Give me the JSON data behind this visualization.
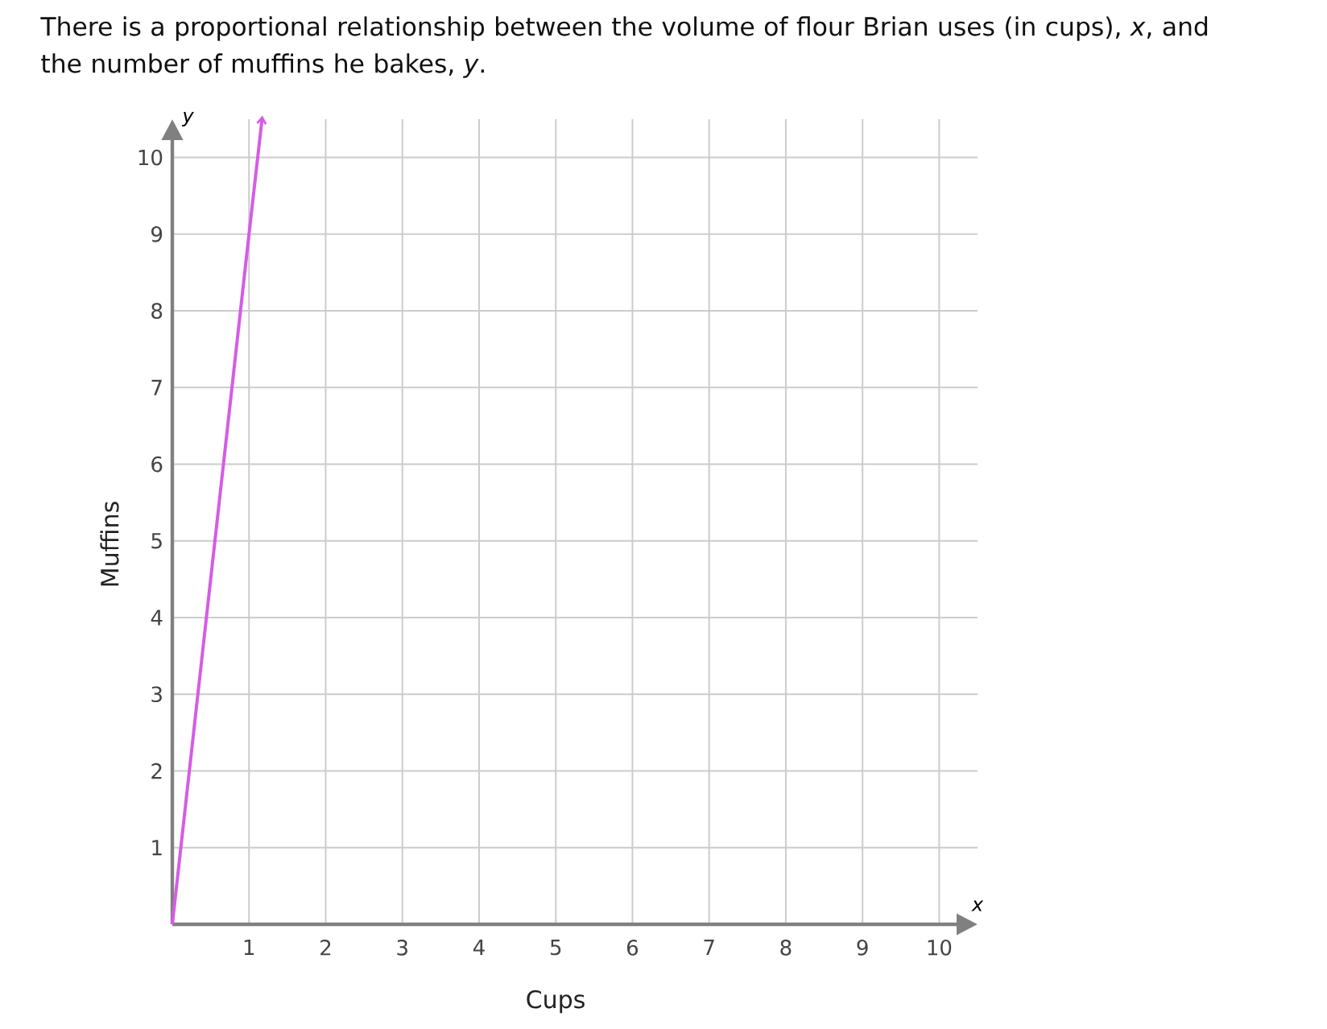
{
  "chart_data": {
    "type": "line",
    "title": "There is a proportional relationship between the volume of flour Brian uses (in cups), *x*, and the number of muffins he bakes, *y*.",
    "xlabel": "Cups",
    "ylabel": "Muffins",
    "annotations": [
      "x",
      "y"
    ],
    "x": [
      0,
      1,
      1.17
    ],
    "series": [
      {
        "color": "#d65ce6",
        "values": [
          0,
          9,
          10.5
        ]
      }
    ],
    "xlim": [
      0,
      10.5
    ],
    "ylim": [
      0,
      10.5
    ],
    "xticks": [
      1,
      2,
      3,
      4,
      5,
      6,
      7,
      8,
      9,
      10
    ],
    "yticks": [
      1,
      2,
      3,
      4,
      5,
      6,
      7,
      8,
      9,
      10
    ],
    "grid": true
  }
}
